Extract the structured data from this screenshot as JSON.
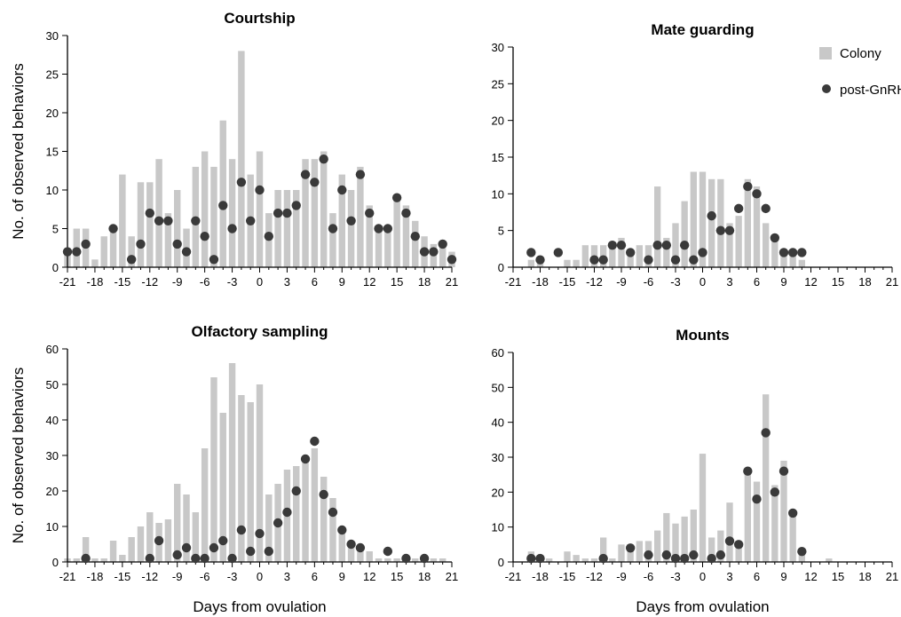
{
  "legend": {
    "colony_label": "Colony",
    "gnrh_label": "post-GnRH",
    "colony_color": "#c8c8c8",
    "gnrh_color": "#3a3a3a"
  },
  "chart_data": [
    {
      "type": "bar",
      "title": "Courtship",
      "ylabel": "No. of observed behaviors",
      "xlabel": "",
      "xlim": [
        -21,
        21
      ],
      "ylim": [
        0,
        30
      ],
      "yticks": [
        0,
        5,
        10,
        15,
        20,
        25,
        30
      ],
      "xticks": [
        -21,
        -18,
        -15,
        -12,
        -9,
        -6,
        -3,
        0,
        3,
        6,
        9,
        12,
        15,
        18,
        21
      ],
      "series": [
        {
          "name": "Colony",
          "kind": "bar",
          "points": [
            [
              -21,
              2
            ],
            [
              -20,
              5
            ],
            [
              -19,
              5
            ],
            [
              -18,
              1
            ],
            [
              -17,
              4
            ],
            [
              -16,
              5
            ],
            [
              -15,
              12
            ],
            [
              -14,
              4
            ],
            [
              -13,
              11
            ],
            [
              -12,
              11
            ],
            [
              -11,
              14
            ],
            [
              -10,
              7
            ],
            [
              -9,
              10
            ],
            [
              -8,
              5
            ],
            [
              -7,
              13
            ],
            [
              -6,
              15
            ],
            [
              -5,
              13
            ],
            [
              -4,
              19
            ],
            [
              -3,
              14
            ],
            [
              -2,
              28
            ],
            [
              -1,
              12
            ],
            [
              0,
              15
            ],
            [
              1,
              7
            ],
            [
              2,
              10
            ],
            [
              3,
              10
            ],
            [
              4,
              10
            ],
            [
              5,
              14
            ],
            [
              6,
              14
            ],
            [
              7,
              15
            ],
            [
              8,
              7
            ],
            [
              9,
              12
            ],
            [
              10,
              10
            ],
            [
              11,
              13
            ],
            [
              12,
              8
            ],
            [
              13,
              5
            ],
            [
              14,
              5
            ],
            [
              15,
              9
            ],
            [
              16,
              8
            ],
            [
              17,
              6
            ],
            [
              18,
              4
            ],
            [
              19,
              3
            ],
            [
              20,
              3
            ],
            [
              21,
              2
            ]
          ]
        },
        {
          "name": "post-GnRH",
          "kind": "dot",
          "points": [
            [
              -21,
              2
            ],
            [
              -20,
              2
            ],
            [
              -19,
              3
            ],
            [
              -16,
              5
            ],
            [
              -14,
              1
            ],
            [
              -13,
              3
            ],
            [
              -12,
              7
            ],
            [
              -11,
              6
            ],
            [
              -10,
              6
            ],
            [
              -9,
              3
            ],
            [
              -8,
              2
            ],
            [
              -7,
              6
            ],
            [
              -6,
              4
            ],
            [
              -5,
              1
            ],
            [
              -4,
              8
            ],
            [
              -3,
              5
            ],
            [
              -2,
              11
            ],
            [
              -1,
              6
            ],
            [
              0,
              10
            ],
            [
              1,
              4
            ],
            [
              2,
              7
            ],
            [
              3,
              7
            ],
            [
              4,
              8
            ],
            [
              5,
              12
            ],
            [
              6,
              11
            ],
            [
              7,
              14
            ],
            [
              8,
              5
            ],
            [
              9,
              10
            ],
            [
              10,
              6
            ],
            [
              11,
              12
            ],
            [
              12,
              7
            ],
            [
              13,
              5
            ],
            [
              14,
              5
            ],
            [
              15,
              9
            ],
            [
              16,
              7
            ],
            [
              17,
              4
            ],
            [
              18,
              2
            ],
            [
              19,
              2
            ],
            [
              20,
              3
            ],
            [
              21,
              1
            ]
          ]
        }
      ]
    },
    {
      "type": "bar",
      "title": "Mate guarding",
      "ylabel": "",
      "xlabel": "",
      "xlim": [
        -21,
        21
      ],
      "ylim": [
        0,
        30
      ],
      "yticks": [
        0,
        5,
        10,
        15,
        20,
        25,
        30
      ],
      "xticks": [
        -21,
        -18,
        -15,
        -12,
        -9,
        -6,
        -3,
        0,
        3,
        6,
        9,
        12,
        15,
        18,
        21
      ],
      "series": [
        {
          "name": "Colony",
          "kind": "bar",
          "points": [
            [
              -19,
              1
            ],
            [
              -18,
              1
            ],
            [
              -15,
              1
            ],
            [
              -14,
              1
            ],
            [
              -13,
              3
            ],
            [
              -12,
              3
            ],
            [
              -11,
              3
            ],
            [
              -10,
              3
            ],
            [
              -9,
              4
            ],
            [
              -8,
              2
            ],
            [
              -7,
              3
            ],
            [
              -6,
              3
            ],
            [
              -5,
              11
            ],
            [
              -4,
              4
            ],
            [
              -3,
              6
            ],
            [
              -2,
              9
            ],
            [
              -1,
              13
            ],
            [
              0,
              13
            ],
            [
              1,
              12
            ],
            [
              2,
              12
            ],
            [
              3,
              6
            ],
            [
              4,
              7
            ],
            [
              5,
              12
            ],
            [
              6,
              11
            ],
            [
              7,
              6
            ],
            [
              8,
              4
            ],
            [
              9,
              2
            ],
            [
              10,
              2
            ],
            [
              11,
              1
            ]
          ]
        },
        {
          "name": "post-GnRH",
          "kind": "dot",
          "points": [
            [
              -19,
              2
            ],
            [
              -18,
              1
            ],
            [
              -16,
              2
            ],
            [
              -12,
              1
            ],
            [
              -11,
              1
            ],
            [
              -10,
              3
            ],
            [
              -9,
              3
            ],
            [
              -8,
              2
            ],
            [
              -6,
              1
            ],
            [
              -5,
              3
            ],
            [
              -4,
              3
            ],
            [
              -3,
              1
            ],
            [
              -2,
              3
            ],
            [
              -1,
              1
            ],
            [
              0,
              2
            ],
            [
              1,
              7
            ],
            [
              2,
              5
            ],
            [
              3,
              5
            ],
            [
              4,
              8
            ],
            [
              5,
              11
            ],
            [
              6,
              10
            ],
            [
              7,
              8
            ],
            [
              8,
              4
            ],
            [
              9,
              2
            ],
            [
              10,
              2
            ],
            [
              11,
              2
            ]
          ]
        }
      ]
    },
    {
      "type": "bar",
      "title": "Olfactory sampling",
      "ylabel": "No. of observed behaviors",
      "xlabel": "Days from ovulation",
      "xlim": [
        -21,
        21
      ],
      "ylim": [
        0,
        60
      ],
      "yticks": [
        0,
        10,
        20,
        30,
        40,
        50,
        60
      ],
      "xticks": [
        -21,
        -18,
        -15,
        -12,
        -9,
        -6,
        -3,
        0,
        3,
        6,
        9,
        12,
        15,
        18,
        21
      ],
      "series": [
        {
          "name": "Colony",
          "kind": "bar",
          "points": [
            [
              -21,
              1
            ],
            [
              -20,
              1
            ],
            [
              -19,
              7
            ],
            [
              -18,
              1
            ],
            [
              -17,
              1
            ],
            [
              -16,
              6
            ],
            [
              -15,
              2
            ],
            [
              -14,
              7
            ],
            [
              -13,
              10
            ],
            [
              -12,
              14
            ],
            [
              -11,
              11
            ],
            [
              -10,
              12
            ],
            [
              -9,
              22
            ],
            [
              -8,
              19
            ],
            [
              -7,
              14
            ],
            [
              -6,
              32
            ],
            [
              -5,
              52
            ],
            [
              -4,
              42
            ],
            [
              -3,
              56
            ],
            [
              -2,
              47
            ],
            [
              -1,
              45
            ],
            [
              0,
              50
            ],
            [
              1,
              19
            ],
            [
              2,
              22
            ],
            [
              3,
              26
            ],
            [
              4,
              27
            ],
            [
              5,
              28
            ],
            [
              6,
              32
            ],
            [
              7,
              24
            ],
            [
              8,
              18
            ],
            [
              9,
              8
            ],
            [
              10,
              6
            ],
            [
              11,
              4
            ],
            [
              12,
              3
            ],
            [
              13,
              1
            ],
            [
              14,
              1
            ],
            [
              15,
              1
            ],
            [
              16,
              1
            ],
            [
              17,
              1
            ],
            [
              18,
              1
            ],
            [
              19,
              1
            ],
            [
              20,
              1
            ]
          ]
        },
        {
          "name": "post-GnRH",
          "kind": "dot",
          "points": [
            [
              -19,
              1
            ],
            [
              -12,
              1
            ],
            [
              -11,
              6
            ],
            [
              -9,
              2
            ],
            [
              -8,
              4
            ],
            [
              -7,
              1
            ],
            [
              -6,
              1
            ],
            [
              -5,
              4
            ],
            [
              -4,
              6
            ],
            [
              -3,
              1
            ],
            [
              -2,
              9
            ],
            [
              -1,
              3
            ],
            [
              0,
              8
            ],
            [
              1,
              3
            ],
            [
              2,
              11
            ],
            [
              3,
              14
            ],
            [
              4,
              20
            ],
            [
              5,
              29
            ],
            [
              6,
              34
            ],
            [
              7,
              19
            ],
            [
              8,
              14
            ],
            [
              9,
              9
            ],
            [
              10,
              5
            ],
            [
              11,
              4
            ],
            [
              14,
              3
            ],
            [
              16,
              1
            ],
            [
              18,
              1
            ]
          ]
        }
      ]
    },
    {
      "type": "bar",
      "title": "Mounts",
      "ylabel": "",
      "xlabel": "Days from ovulation",
      "xlim": [
        -21,
        21
      ],
      "ylim": [
        0,
        60
      ],
      "yticks": [
        0,
        10,
        20,
        30,
        40,
        50,
        60
      ],
      "xticks": [
        -21,
        -18,
        -15,
        -12,
        -9,
        -6,
        -3,
        0,
        3,
        6,
        9,
        12,
        15,
        18,
        21
      ],
      "series": [
        {
          "name": "Colony",
          "kind": "bar",
          "points": [
            [
              -19,
              3
            ],
            [
              -18,
              2
            ],
            [
              -17,
              1
            ],
            [
              -15,
              3
            ],
            [
              -14,
              2
            ],
            [
              -13,
              1
            ],
            [
              -12,
              1
            ],
            [
              -11,
              7
            ],
            [
              -10,
              1
            ],
            [
              -9,
              5
            ],
            [
              -8,
              5
            ],
            [
              -7,
              6
            ],
            [
              -6,
              6
            ],
            [
              -5,
              9
            ],
            [
              -4,
              14
            ],
            [
              -3,
              11
            ],
            [
              -2,
              13
            ],
            [
              -1,
              15
            ],
            [
              0,
              31
            ],
            [
              1,
              7
            ],
            [
              2,
              9
            ],
            [
              3,
              17
            ],
            [
              4,
              6
            ],
            [
              5,
              26
            ],
            [
              6,
              23
            ],
            [
              7,
              48
            ],
            [
              8,
              22
            ],
            [
              9,
              29
            ],
            [
              10,
              15
            ],
            [
              11,
              3
            ],
            [
              14,
              1
            ]
          ]
        },
        {
          "name": "post-GnRH",
          "kind": "dot",
          "points": [
            [
              -19,
              1
            ],
            [
              -18,
              1
            ],
            [
              -11,
              1
            ],
            [
              -8,
              4
            ],
            [
              -6,
              2
            ],
            [
              -4,
              2
            ],
            [
              -3,
              1
            ],
            [
              -2,
              1
            ],
            [
              -1,
              2
            ],
            [
              1,
              1
            ],
            [
              2,
              2
            ],
            [
              3,
              6
            ],
            [
              4,
              5
            ],
            [
              5,
              26
            ],
            [
              6,
              18
            ],
            [
              7,
              37
            ],
            [
              8,
              20
            ],
            [
              9,
              26
            ],
            [
              10,
              14
            ],
            [
              11,
              3
            ]
          ]
        }
      ]
    }
  ]
}
